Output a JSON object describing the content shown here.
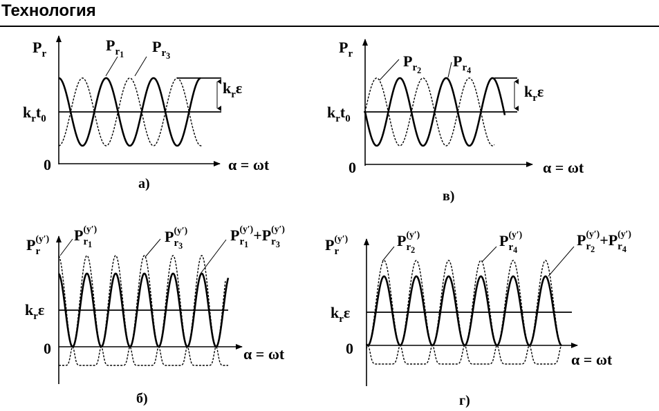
{
  "header": {
    "title": "Технология"
  },
  "panels": {
    "a": {
      "caption": "а)",
      "y_label": [
        {
          "text": "P",
          "pos": "base"
        },
        {
          "text": "r",
          "pos": "sub"
        }
      ],
      "level_label": [
        {
          "text": "k",
          "pos": "base"
        },
        {
          "text": "r",
          "pos": "sub"
        },
        {
          "text": "t",
          "pos": "base"
        },
        {
          "text": "0",
          "pos": "sub"
        }
      ],
      "amplitude_label": [
        {
          "text": "k",
          "pos": "base"
        },
        {
          "text": "r",
          "pos": "sub"
        },
        {
          "text": "ε",
          "pos": "base"
        }
      ],
      "zero": "0",
      "x_label": "α = ωt",
      "curve_labels": [
        [
          {
            "text": "P",
            "pos": "base"
          },
          {
            "text": "r",
            "pos": "sub"
          },
          {
            "text": "1",
            "pos": "subsub"
          }
        ],
        [
          {
            "text": "P",
            "pos": "base"
          },
          {
            "text": "r",
            "pos": "sub"
          },
          {
            "text": "3",
            "pos": "subsub"
          }
        ]
      ]
    },
    "v": {
      "caption": "в)",
      "y_label": [
        {
          "text": "P",
          "pos": "base"
        },
        {
          "text": "r",
          "pos": "sub"
        }
      ],
      "level_label": [
        {
          "text": "k",
          "pos": "base"
        },
        {
          "text": "r",
          "pos": "sub"
        },
        {
          "text": "t",
          "pos": "base"
        },
        {
          "text": "0",
          "pos": "sub"
        }
      ],
      "amplitude_label": [
        {
          "text": "k",
          "pos": "base"
        },
        {
          "text": "r",
          "pos": "sub"
        },
        {
          "text": "ε",
          "pos": "base"
        }
      ],
      "zero": "0",
      "x_label": "α = ωt",
      "curve_labels": [
        [
          {
            "text": "P",
            "pos": "base"
          },
          {
            "text": "r",
            "pos": "sub"
          },
          {
            "text": "2",
            "pos": "subsub"
          }
        ],
        [
          {
            "text": "P",
            "pos": "base"
          },
          {
            "text": "r",
            "pos": "sub"
          },
          {
            "text": "4",
            "pos": "subsub"
          }
        ]
      ]
    },
    "b": {
      "caption": "б)",
      "y_label": [
        {
          "text": "P",
          "pos": "base"
        },
        {
          "text": "(y′)",
          "pos": "sup"
        },
        {
          "text": "r",
          "pos": "sub"
        }
      ],
      "level_label": [
        {
          "text": "k",
          "pos": "base"
        },
        {
          "text": "r",
          "pos": "sub"
        },
        {
          "text": "ε",
          "pos": "base"
        }
      ],
      "zero": "0",
      "x_label": "α = ωt",
      "curve_labels": [
        [
          {
            "text": "P",
            "pos": "base"
          },
          {
            "text": "(y′)",
            "pos": "sup"
          },
          {
            "text": "r",
            "pos": "sub"
          },
          {
            "text": "1",
            "pos": "subsub"
          }
        ],
        [
          {
            "text": "P",
            "pos": "base"
          },
          {
            "text": "(y′)",
            "pos": "sup"
          },
          {
            "text": "r",
            "pos": "sub"
          },
          {
            "text": "3",
            "pos": "subsub"
          }
        ],
        [
          {
            "text": "P",
            "pos": "base"
          },
          {
            "text": "(y′)",
            "pos": "sup"
          },
          {
            "text": "r",
            "pos": "sub"
          },
          {
            "text": "1",
            "pos": "subsub"
          },
          {
            "text": "+P",
            "pos": "base"
          },
          {
            "text": "(y′)",
            "pos": "sup"
          },
          {
            "text": "r",
            "pos": "sub"
          },
          {
            "text": "3",
            "pos": "subsub"
          }
        ]
      ]
    },
    "g": {
      "caption": "г)",
      "y_label": [
        {
          "text": "P",
          "pos": "base"
        },
        {
          "text": "(y′)",
          "pos": "sup"
        },
        {
          "text": "r",
          "pos": "sub"
        }
      ],
      "level_label": [
        {
          "text": "k",
          "pos": "base"
        },
        {
          "text": "r",
          "pos": "sub"
        },
        {
          "text": "ε",
          "pos": "base"
        }
      ],
      "zero": "0",
      "x_label": "α = ωt",
      "curve_labels": [
        [
          {
            "text": "P",
            "pos": "base"
          },
          {
            "text": "(y′)",
            "pos": "sup"
          },
          {
            "text": "r",
            "pos": "sub"
          },
          {
            "text": "2",
            "pos": "subsub"
          }
        ],
        [
          {
            "text": "P",
            "pos": "base"
          },
          {
            "text": "(y′)",
            "pos": "sup"
          },
          {
            "text": "r",
            "pos": "sub"
          },
          {
            "text": "4",
            "pos": "subsub"
          }
        ],
        [
          {
            "text": "P",
            "pos": "base"
          },
          {
            "text": "(y′)",
            "pos": "sup"
          },
          {
            "text": "r",
            "pos": "sub"
          },
          {
            "text": "2",
            "pos": "subsub"
          },
          {
            "text": "+P",
            "pos": "base"
          },
          {
            "text": "(y′)",
            "pos": "sup"
          },
          {
            "text": "r",
            "pos": "sub"
          },
          {
            "text": "4",
            "pos": "subsub"
          }
        ]
      ]
    }
  }
}
